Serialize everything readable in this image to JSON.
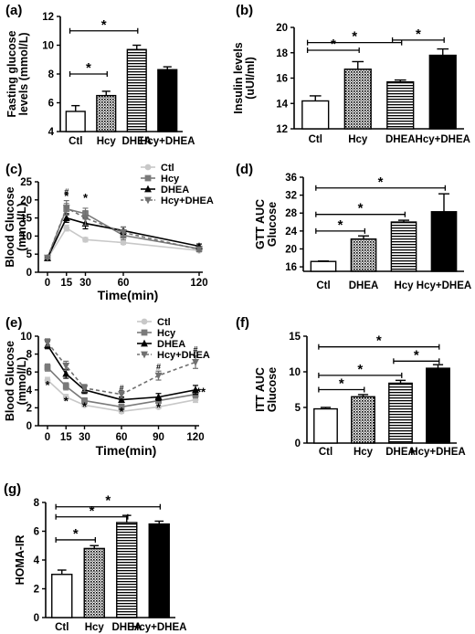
{
  "chart_data": [
    {
      "panel": "(a)",
      "type": "bar",
      "ylabel": "Fasting glucose levels (mmol/L)",
      "ylabel_lines": [
        "Fasting glucose",
        "levels (mmol/L)"
      ],
      "categories": [
        "Ctl",
        "Hcy",
        "DHEA",
        "Hcy+DHEA"
      ],
      "values": [
        5.4,
        6.5,
        9.7,
        8.3
      ],
      "errors": [
        0.4,
        0.3,
        0.3,
        0.2
      ],
      "patterns": [
        "white",
        "dots",
        "hlines",
        "black"
      ],
      "ylim": [
        4,
        12
      ],
      "yticks": [
        4,
        6,
        8,
        10,
        12
      ],
      "brackets": [
        {
          "from": 0,
          "to": 1,
          "y": 8.0,
          "label": "*"
        },
        {
          "from": 0,
          "to": 2,
          "y": 11.0,
          "label": "*"
        }
      ]
    },
    {
      "panel": "(b)",
      "type": "bar",
      "ylabel": "Insulin levels (uUI/ml)",
      "ylabel_lines": [
        "Insulin levels",
        "(uUI/ml)"
      ],
      "categories": [
        "Ctl",
        "Hcy",
        "DHEA",
        "Hcy+DHEA"
      ],
      "values": [
        14.2,
        16.7,
        15.7,
        17.8
      ],
      "errors": [
        0.4,
        0.6,
        0.15,
        0.5
      ],
      "patterns": [
        "white",
        "dots",
        "hlines",
        "black"
      ],
      "ylim": [
        12,
        20
      ],
      "yticks": [
        12,
        14,
        16,
        18,
        20
      ],
      "brackets": [
        {
          "from": 0,
          "to": 1,
          "y": 18.2,
          "label": "*"
        },
        {
          "from": 0,
          "to": 2,
          "y": 18.8,
          "label": "*"
        },
        {
          "from": 2,
          "to": 3,
          "y": 19.0,
          "label": "*"
        }
      ]
    },
    {
      "panel": "(c)",
      "type": "line",
      "ylabel": "Blood Glucose (mmol/L)",
      "ylabel_lines": [
        "Blood Glucose",
        "(mmol/L)"
      ],
      "xlabel": "Time(min)",
      "x": [
        0,
        15,
        30,
        60,
        120
      ],
      "xticks": [
        0,
        15,
        30,
        60,
        120
      ],
      "ylim": [
        0,
        25
      ],
      "yticks": [
        0,
        5,
        10,
        15,
        20,
        25
      ],
      "legend": "top-right",
      "series": [
        {
          "name": "Ctl",
          "color": "#c8c8c8",
          "dashed": false,
          "marker": "circle",
          "values": [
            3.8,
            12.2,
            9.0,
            8.2,
            6.0
          ],
          "errors": [
            0.3,
            0.8,
            0.6,
            0.5,
            0.4
          ]
        },
        {
          "name": "Hcy",
          "color": "#7a7a7a",
          "dashed": false,
          "marker": "square",
          "values": [
            3.9,
            17.5,
            16.2,
            10.2,
            6.5
          ],
          "errors": [
            0.3,
            1.5,
            1.5,
            1.2,
            0.6
          ]
        },
        {
          "name": "DHEA",
          "color": "#000000",
          "dashed": false,
          "marker": "triangle",
          "values": [
            3.9,
            15.0,
            13.5,
            11.5,
            7.2
          ],
          "errors": [
            0.3,
            1.2,
            1.5,
            1.0,
            0.6
          ]
        },
        {
          "name": "Hcy+DHEA",
          "color": "#707070",
          "dashed": true,
          "marker": "triangle-down",
          "values": [
            4.0,
            17.8,
            15.0,
            11.0,
            6.3
          ],
          "errors": [
            0.3,
            2.0,
            2.0,
            1.5,
            0.6
          ]
        }
      ],
      "annotations": [
        {
          "x": 15,
          "y": 21.5,
          "label": "#"
        },
        {
          "x": 15,
          "y": 20.0,
          "label": "*"
        },
        {
          "x": 30,
          "y": 19.5,
          "label": "*"
        }
      ]
    },
    {
      "panel": "(d)",
      "type": "bar",
      "ylabel": "GTT AUC Glucose",
      "ylabel_lines": [
        "GTT AUC",
        "Glucose"
      ],
      "categories": [
        "Ctl",
        "DHEA",
        "Hcy",
        "Hcy+DHEA"
      ],
      "values": [
        17.2,
        22.2,
        26.0,
        28.3
      ],
      "errors": [
        0.1,
        0.7,
        0.4,
        4.0
      ],
      "patterns": [
        "white",
        "dots",
        "hlines",
        "black"
      ],
      "ylim": [
        15,
        36
      ],
      "yticks": [
        16,
        20,
        24,
        28,
        32,
        36
      ],
      "brackets": [
        {
          "from": 0,
          "to": 1,
          "y": 24.0,
          "label": "*"
        },
        {
          "from": 0,
          "to": 2,
          "y": 27.7,
          "label": "*"
        },
        {
          "from": 0,
          "to": 3,
          "y": 33.6,
          "label": "*"
        }
      ]
    },
    {
      "panel": "(e)",
      "type": "line",
      "ylabel": "Blood Glucose (mmol/L)",
      "ylabel_lines": [
        "Blood Glucose",
        "(mmol/L)"
      ],
      "xlabel": "Time(min)",
      "x": [
        0,
        15,
        30,
        60,
        90,
        120
      ],
      "xticks": [
        0,
        15,
        30,
        60,
        90,
        120
      ],
      "ylim": [
        0,
        10
      ],
      "yticks": [
        0,
        2,
        4,
        6,
        8,
        10
      ],
      "legend": "top-right",
      "series": [
        {
          "name": "Ctl",
          "color": "#c8c8c8",
          "dashed": false,
          "marker": "circle",
          "values": [
            5.1,
            3.2,
            2.3,
            1.6,
            2.1,
            2.9
          ],
          "errors": [
            0.3,
            0.3,
            0.2,
            0.2,
            0.2,
            0.3
          ]
        },
        {
          "name": "Hcy",
          "color": "#7a7a7a",
          "dashed": false,
          "marker": "square",
          "values": [
            6.5,
            4.4,
            2.8,
            2.1,
            2.8,
            3.5
          ],
          "errors": [
            0.4,
            0.4,
            0.3,
            0.3,
            0.3,
            0.4
          ]
        },
        {
          "name": "DHEA",
          "color": "#000000",
          "dashed": false,
          "marker": "triangle",
          "values": [
            9.0,
            5.8,
            4.0,
            2.9,
            3.2,
            4.0
          ],
          "errors": [
            0.4,
            0.5,
            0.4,
            0.3,
            0.4,
            0.5
          ]
        },
        {
          "name": "Hcy+DHEA",
          "color": "#707070",
          "dashed": true,
          "marker": "triangle-down",
          "values": [
            9.3,
            6.7,
            4.2,
            3.5,
            5.6,
            7.1
          ],
          "errors": [
            0.4,
            0.5,
            0.4,
            0.4,
            0.5,
            0.7
          ]
        }
      ],
      "annotations": [
        {
          "x": 0,
          "y": 4.1,
          "label": "*"
        },
        {
          "x": 15,
          "y": 2.3,
          "label": "*"
        },
        {
          "x": 30,
          "y": 1.7,
          "label": "*"
        },
        {
          "x": 60,
          "y": 1.1,
          "label": "*"
        },
        {
          "x": 60,
          "y": 3.9,
          "label": "#"
        },
        {
          "x": 90,
          "y": 1.6,
          "label": "*"
        },
        {
          "x": 90,
          "y": 6.3,
          "label": "#"
        },
        {
          "x": 120,
          "y": 8.2,
          "label": "#"
        },
        {
          "x": 120,
          "y": 3.3,
          "label": "**"
        }
      ]
    },
    {
      "panel": "(f)",
      "type": "bar",
      "ylabel": "ITT AUC Glucose",
      "ylabel_lines": [
        "ITT AUC",
        "Glucose"
      ],
      "categories": [
        "Ctl",
        "Hcy",
        "DHEA",
        "Hcy+DHEA"
      ],
      "values": [
        4.8,
        6.5,
        8.4,
        10.5
      ],
      "errors": [
        0.2,
        0.3,
        0.4,
        0.5
      ],
      "patterns": [
        "white",
        "dots",
        "hlines",
        "black"
      ],
      "ylim": [
        0,
        15
      ],
      "yticks": [
        0,
        5,
        10,
        15
      ],
      "brackets": [
        {
          "from": 0,
          "to": 1,
          "y": 7.5,
          "label": "*"
        },
        {
          "from": 0,
          "to": 2,
          "y": 9.5,
          "label": "*"
        },
        {
          "from": 2,
          "to": 3,
          "y": 11.5,
          "label": "*"
        },
        {
          "from": 0,
          "to": 3,
          "y": 13.5,
          "label": "*"
        }
      ]
    },
    {
      "panel": "(g)",
      "type": "bar",
      "ylabel": "HOMA-IR",
      "ylabel_lines": [
        "HOMA-IR"
      ],
      "categories": [
        "Ctl",
        "Hcy",
        "DHEA",
        "Hcy+DHEA"
      ],
      "values": [
        3.0,
        4.8,
        6.6,
        6.5
      ],
      "errors": [
        0.3,
        0.2,
        0.5,
        0.2
      ],
      "patterns": [
        "white",
        "dots",
        "hlines",
        "black"
      ],
      "ylim": [
        0,
        8
      ],
      "yticks": [
        0,
        2,
        4,
        6,
        8
      ],
      "brackets": [
        {
          "from": 0,
          "to": 1,
          "y": 5.4,
          "label": "*"
        },
        {
          "from": 0,
          "to": 2,
          "y": 7.0,
          "label": "*"
        },
        {
          "from": 0,
          "to": 3,
          "y": 7.7,
          "label": "*"
        }
      ]
    }
  ]
}
